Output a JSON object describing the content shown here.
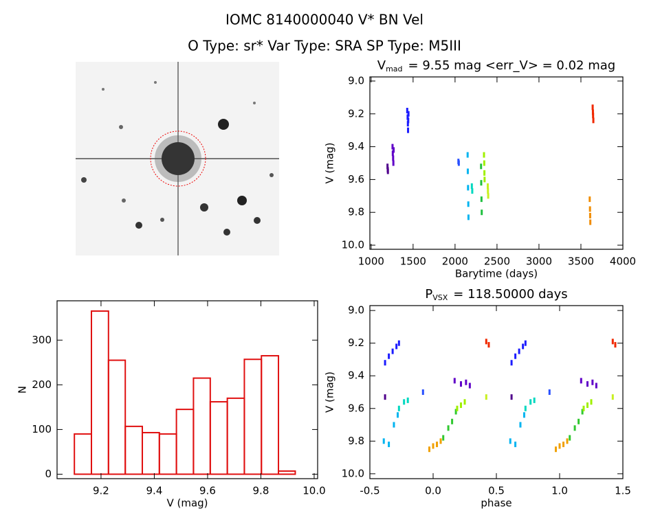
{
  "header": {
    "title": "IOMC 8140000040    V* BN Vel",
    "subtitle": "O Type: sr*  Var Type: SRA  SP Type: M5III"
  },
  "chart_data": [
    {
      "type": "scatter",
      "title": {
        "main": "V",
        "sub": "mad",
        "rest": "= 9.55 mag <err_V> = 0.02 mag"
      },
      "x_label": "Barytime (days)",
      "y_label": "V (mag)",
      "xlim": [
        985,
        4000
      ],
      "ylim": [
        10.025,
        8.975
      ],
      "xticks": [
        1000,
        1500,
        2000,
        2500,
        3000,
        3500,
        4000
      ],
      "yticks": [
        {
          "value": 9,
          "label": "9.0"
        },
        9.2,
        9.4,
        9.6,
        9.8,
        {
          "value": 10,
          "label": "10.0"
        }
      ],
      "series": [
        {
          "color": "#50008c",
          "x": [
            1195,
            1198,
            1200
          ],
          "values": [
            9.52,
            9.54,
            9.55
          ]
        },
        {
          "color": "#6000c8",
          "x": [
            1255,
            1258,
            1262,
            1265,
            1268
          ],
          "values": [
            9.4,
            9.44,
            9.47,
            9.5,
            9.42
          ]
        },
        {
          "color": "#1c1cff",
          "x": [
            1430,
            1435,
            1438,
            1440,
            1442,
            1445
          ],
          "values": [
            9.18,
            9.22,
            9.26,
            9.3,
            9.24,
            9.2
          ]
        },
        {
          "color": "#2850ff",
          "x": [
            2040,
            2045
          ],
          "values": [
            9.49,
            9.5
          ]
        },
        {
          "color": "#00b4f0",
          "x": [
            2150,
            2152,
            2155,
            2158,
            2160
          ],
          "values": [
            9.45,
            9.55,
            9.65,
            9.75,
            9.83
          ]
        },
        {
          "color": "#00d8c0",
          "x": [
            2200,
            2205
          ],
          "values": [
            9.64,
            9.67
          ]
        },
        {
          "color": "#20c040",
          "x": [
            2310,
            2312,
            2315,
            2318
          ],
          "values": [
            9.52,
            9.62,
            9.72,
            9.8
          ]
        },
        {
          "color": "#a0f000",
          "x": [
            2345,
            2348,
            2350,
            2352
          ],
          "values": [
            9.45,
            9.5,
            9.56,
            9.6
          ]
        },
        {
          "color": "#c8f020",
          "x": [
            2390,
            2392,
            2395
          ],
          "values": [
            9.64,
            9.67,
            9.7
          ]
        },
        {
          "color": "#f08c00",
          "x": [
            3605,
            3608,
            3610,
            3612
          ],
          "values": [
            9.72,
            9.78,
            9.82,
            9.86
          ]
        },
        {
          "color": "#f02800",
          "x": [
            3640,
            3643,
            3645,
            3648
          ],
          "values": [
            9.16,
            9.19,
            9.21,
            9.24
          ]
        }
      ]
    },
    {
      "type": "histogram",
      "x_label": "V (mag)",
      "y_label": "N",
      "xlim": [
        9.035,
        10.013
      ],
      "ylim": [
        -10,
        388
      ],
      "xticks": [
        9.2,
        9.4,
        9.6,
        9.8,
        {
          "value": 10,
          "label": "10.0"
        }
      ],
      "yticks": [
        0,
        100,
        200,
        300
      ],
      "color": "#e01010",
      "bins": [
        9.1,
        9.164,
        9.228,
        9.291,
        9.355,
        9.419,
        9.483,
        9.547,
        9.61,
        9.674,
        9.738,
        9.802,
        9.866,
        9.929
      ],
      "values": [
        90,
        365,
        255,
        107,
        93,
        90,
        145,
        215,
        162,
        170,
        257,
        265,
        7
      ]
    },
    {
      "type": "scatter",
      "title": {
        "main": "P",
        "sub": "VSX",
        "rest": "= 118.50000 days"
      },
      "x_label": "phase",
      "y_label": "V (mag)",
      "xlim": [
        -0.5,
        1.5
      ],
      "ylim": [
        10.03,
        8.97
      ],
      "xticks": [
        -0.5,
        {
          "value": 0,
          "label": "0.0"
        },
        0.5,
        {
          "value": 1,
          "label": "1.0"
        },
        1.5
      ],
      "yticks": [
        {
          "value": 9,
          "label": "9.0"
        },
        9.2,
        9.4,
        9.6,
        9.8,
        {
          "value": 10,
          "label": "10.0"
        }
      ],
      "series": [
        {
          "color": "#1c1cff",
          "x": [
            -0.38,
            -0.35,
            -0.32,
            -0.29,
            -0.27,
            0.62,
            0.65,
            0.68,
            0.71,
            0.73
          ],
          "values": [
            9.32,
            9.28,
            9.25,
            9.22,
            9.2,
            9.32,
            9.28,
            9.25,
            9.22,
            9.2
          ]
        },
        {
          "color": "#50008c",
          "x": [
            -0.38,
            0.62
          ],
          "values": [
            9.53,
            9.53
          ]
        },
        {
          "color": "#00b4f0",
          "x": [
            -0.39,
            -0.35,
            -0.31,
            -0.28,
            0.61,
            0.65,
            0.69,
            0.72
          ],
          "values": [
            9.8,
            9.82,
            9.7,
            9.64,
            9.8,
            9.82,
            9.7,
            9.64
          ]
        },
        {
          "color": "#00d8c0",
          "x": [
            -0.27,
            -0.23,
            -0.2,
            0.73,
            0.77,
            0.8
          ],
          "values": [
            9.6,
            9.56,
            9.55,
            9.6,
            9.56,
            9.55
          ]
        },
        {
          "color": "#2850ff",
          "x": [
            -0.08,
            0.92
          ],
          "values": [
            9.5,
            9.5
          ]
        },
        {
          "color": "#f0a000",
          "x": [
            -0.03,
            0.0,
            0.03,
            0.06,
            0.97,
            1.0,
            1.03,
            1.06
          ],
          "values": [
            9.85,
            9.83,
            9.82,
            9.8,
            9.85,
            9.83,
            9.82,
            9.8
          ]
        },
        {
          "color": "#30c830",
          "x": [
            0.08,
            0.12,
            0.15,
            0.18,
            1.08,
            1.12,
            1.15,
            1.18
          ],
          "values": [
            9.78,
            9.72,
            9.68,
            9.62,
            9.78,
            9.72,
            9.68,
            9.62
          ]
        },
        {
          "color": "#a0f000",
          "x": [
            0.19,
            0.22,
            0.25,
            1.19,
            1.22,
            1.25
          ],
          "values": [
            9.6,
            9.58,
            9.56,
            9.6,
            9.58,
            9.56
          ]
        },
        {
          "color": "#6000c8",
          "x": [
            0.17,
            0.22,
            0.26,
            0.29,
            1.17,
            1.22,
            1.26,
            1.29
          ],
          "values": [
            9.43,
            9.45,
            9.44,
            9.46,
            9.43,
            9.45,
            9.44,
            9.46
          ]
        },
        {
          "color": "#c8f020",
          "x": [
            0.42,
            1.42
          ],
          "values": [
            9.53,
            9.53
          ]
        },
        {
          "color": "#f02800",
          "x": [
            0.42,
            0.44,
            1.42,
            1.44
          ],
          "values": [
            9.19,
            9.21,
            9.19,
            9.21
          ]
        }
      ]
    }
  ]
}
